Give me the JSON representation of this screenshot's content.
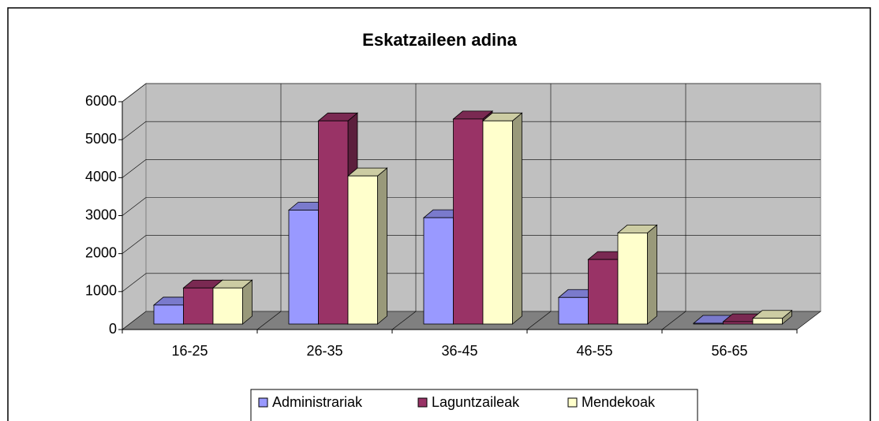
{
  "chart_data": {
    "type": "bar3d",
    "title": "Eskatzaileen adina",
    "categories": [
      "16-25",
      "26-35",
      "36-45",
      "46-55",
      "56-65"
    ],
    "series": [
      {
        "name": "Administrariak",
        "color": "#9999ff",
        "values": [
          500,
          3000,
          2800,
          700,
          20
        ]
      },
      {
        "name": "Laguntzaileak",
        "color": "#993366",
        "values": [
          950,
          5350,
          5400,
          1700,
          60
        ]
      },
      {
        "name": "Mendekoak",
        "color": "#ffffcc",
        "values": [
          950,
          3900,
          5350,
          2400,
          150
        ]
      }
    ],
    "ylim": [
      0,
      6000
    ],
    "yticks": [
      0,
      1000,
      2000,
      3000,
      4000,
      5000,
      6000
    ],
    "grid": true,
    "legend": "bottom"
  }
}
